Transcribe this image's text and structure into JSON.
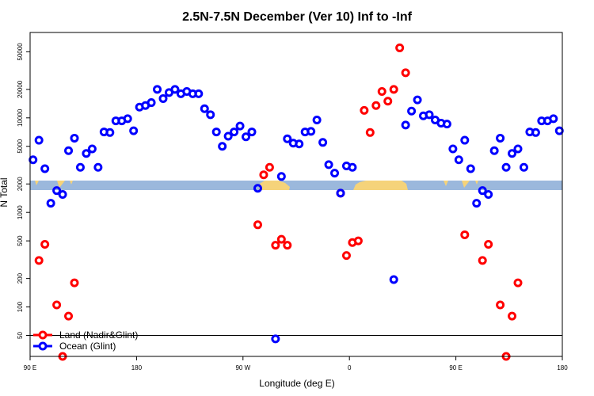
{
  "chart_data": {
    "type": "scatter",
    "title": "2.5N-7.5N December (Ver 10)   Inf to -Inf",
    "xlabel": "Longitude (deg E)",
    "ylabel": "N Total",
    "xlim": [
      0,
      450
    ],
    "ylim_log": [
      30,
      80000
    ],
    "x_ticks": [
      {
        "value": 0,
        "label": "90 E"
      },
      {
        "value": 90,
        "label": "180"
      },
      {
        "value": 180,
        "label": "90 W"
      },
      {
        "value": 270,
        "label": "0"
      },
      {
        "value": 360,
        "label": "90 E"
      },
      {
        "value": 450,
        "label": "180"
      }
    ],
    "y_ticks": [
      {
        "value": 50,
        "label": "50"
      },
      {
        "value": 100,
        "label": "100"
      },
      {
        "value": 200,
        "label": "200"
      },
      {
        "value": 500,
        "label": "500"
      },
      {
        "value": 1000,
        "label": "1000"
      },
      {
        "value": 2000,
        "label": "2000"
      },
      {
        "value": 5000,
        "label": "5000"
      },
      {
        "value": 10000,
        "label": "10000"
      },
      {
        "value": 20000,
        "label": "20000"
      },
      {
        "value": 50000,
        "label": "50000"
      }
    ],
    "legend": {
      "position": "bottom-left"
    },
    "series": [
      {
        "name": "Land (Nadir&Glint)",
        "color": "#ff0000",
        "points": [
          {
            "x": 7.5,
            "y": 310
          },
          {
            "x": 12.5,
            "y": 460
          },
          {
            "x": 22.5,
            "y": 105
          },
          {
            "x": 27.5,
            "y": 30
          },
          {
            "x": 32.5,
            "y": 80
          },
          {
            "x": 37.5,
            "y": 180
          },
          {
            "x": 192.5,
            "y": 740
          },
          {
            "x": 197.5,
            "y": 2500
          },
          {
            "x": 202.5,
            "y": 3000
          },
          {
            "x": 207.5,
            "y": 450
          },
          {
            "x": 212.5,
            "y": 520
          },
          {
            "x": 217.5,
            "y": 450
          },
          {
            "x": 262.5,
            "y": 1600
          },
          {
            "x": 267.5,
            "y": 350
          },
          {
            "x": 272.5,
            "y": 480
          },
          {
            "x": 277.5,
            "y": 500
          },
          {
            "x": 282.5,
            "y": 12000
          },
          {
            "x": 287.5,
            "y": 7000
          },
          {
            "x": 292.5,
            "y": 13500
          },
          {
            "x": 297.5,
            "y": 19000
          },
          {
            "x": 302.5,
            "y": 15000
          },
          {
            "x": 307.5,
            "y": 20000
          },
          {
            "x": 312.5,
            "y": 55000
          },
          {
            "x": 317.5,
            "y": 30000
          },
          {
            "x": 367.5,
            "y": 580
          },
          {
            "x": 382.5,
            "y": 310
          },
          {
            "x": 387.5,
            "y": 460
          },
          {
            "x": 397.5,
            "y": 105
          },
          {
            "x": 402.5,
            "y": 30
          },
          {
            "x": 407.5,
            "y": 80
          },
          {
            "x": 412.5,
            "y": 180
          }
        ]
      },
      {
        "name": "Ocean (Glint)",
        "color": "#0000ff",
        "points": [
          {
            "x": 2.5,
            "y": 3600
          },
          {
            "x": 7.5,
            "y": 5800
          },
          {
            "x": 12.5,
            "y": 2900
          },
          {
            "x": 17.5,
            "y": 1250
          },
          {
            "x": 22.5,
            "y": 1700
          },
          {
            "x": 27.5,
            "y": 1550
          },
          {
            "x": 32.5,
            "y": 4500
          },
          {
            "x": 37.5,
            "y": 6100
          },
          {
            "x": 42.5,
            "y": 3000
          },
          {
            "x": 47.5,
            "y": 4200
          },
          {
            "x": 52.5,
            "y": 4700
          },
          {
            "x": 57.5,
            "y": 3000
          },
          {
            "x": 62.5,
            "y": 7100
          },
          {
            "x": 67.5,
            "y": 7000
          },
          {
            "x": 72.5,
            "y": 9300
          },
          {
            "x": 77.5,
            "y": 9300
          },
          {
            "x": 82.5,
            "y": 9800
          },
          {
            "x": 87.5,
            "y": 7300
          },
          {
            "x": 92.5,
            "y": 13000
          },
          {
            "x": 97.5,
            "y": 13500
          },
          {
            "x": 102.5,
            "y": 14500
          },
          {
            "x": 107.5,
            "y": 20000
          },
          {
            "x": 112.5,
            "y": 16000
          },
          {
            "x": 117.5,
            "y": 18500
          },
          {
            "x": 122.5,
            "y": 20000
          },
          {
            "x": 127.5,
            "y": 18000
          },
          {
            "x": 132.5,
            "y": 19000
          },
          {
            "x": 137.5,
            "y": 18000
          },
          {
            "x": 142.5,
            "y": 18000
          },
          {
            "x": 147.5,
            "y": 12500
          },
          {
            "x": 152.5,
            "y": 10800
          },
          {
            "x": 157.5,
            "y": 7100
          },
          {
            "x": 162.5,
            "y": 5000
          },
          {
            "x": 167.5,
            "y": 6400
          },
          {
            "x": 172.5,
            "y": 7100
          },
          {
            "x": 177.5,
            "y": 8200
          },
          {
            "x": 182.5,
            "y": 6300
          },
          {
            "x": 187.5,
            "y": 7100
          },
          {
            "x": 192.5,
            "y": 1800
          },
          {
            "x": 207.5,
            "y": 46
          },
          {
            "x": 212.5,
            "y": 2400
          },
          {
            "x": 217.5,
            "y": 6000
          },
          {
            "x": 222.5,
            "y": 5400
          },
          {
            "x": 227.5,
            "y": 5300
          },
          {
            "x": 232.5,
            "y": 7100
          },
          {
            "x": 237.5,
            "y": 7200
          },
          {
            "x": 242.5,
            "y": 9500
          },
          {
            "x": 247.5,
            "y": 5500
          },
          {
            "x": 252.5,
            "y": 3200
          },
          {
            "x": 257.5,
            "y": 2600
          },
          {
            "x": 262.5,
            "y": 1600
          },
          {
            "x": 267.5,
            "y": 3100
          },
          {
            "x": 272.5,
            "y": 3000
          },
          {
            "x": 307.5,
            "y": 195
          },
          {
            "x": 317.5,
            "y": 8400
          },
          {
            "x": 322.5,
            "y": 11800
          },
          {
            "x": 327.5,
            "y": 15500
          },
          {
            "x": 332.5,
            "y": 10500
          },
          {
            "x": 337.5,
            "y": 10800
          },
          {
            "x": 342.5,
            "y": 9500
          },
          {
            "x": 347.5,
            "y": 8800
          },
          {
            "x": 352.5,
            "y": 8600
          },
          {
            "x": 357.5,
            "y": 4700
          },
          {
            "x": 362.5,
            "y": 3600
          },
          {
            "x": 367.5,
            "y": 5800
          },
          {
            "x": 372.5,
            "y": 2900
          },
          {
            "x": 377.5,
            "y": 1250
          },
          {
            "x": 382.5,
            "y": 1700
          },
          {
            "x": 387.5,
            "y": 1550
          },
          {
            "x": 392.5,
            "y": 4500
          },
          {
            "x": 397.5,
            "y": 6100
          },
          {
            "x": 402.5,
            "y": 3000
          },
          {
            "x": 407.5,
            "y": 4200
          },
          {
            "x": 412.5,
            "y": 4700
          },
          {
            "x": 417.5,
            "y": 3000
          },
          {
            "x": 422.5,
            "y": 7100
          },
          {
            "x": 427.5,
            "y": 7000
          },
          {
            "x": 432.5,
            "y": 9300
          },
          {
            "x": 437.5,
            "y": 9300
          },
          {
            "x": 442.5,
            "y": 9800
          },
          {
            "x": 447.5,
            "y": 7300
          }
        ]
      }
    ],
    "reference_line_y": 50,
    "land_strip_colors": {
      "ocean": "#9bb8dc",
      "land": "#f5d37a"
    }
  }
}
